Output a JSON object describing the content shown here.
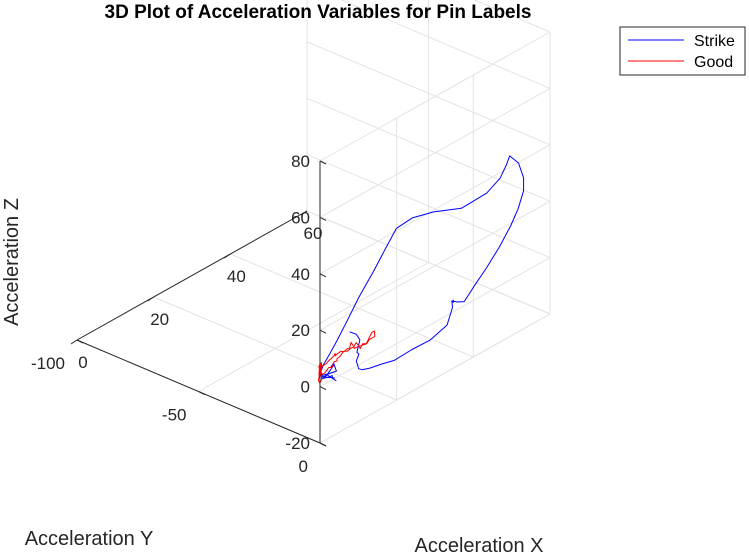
{
  "chart_data": {
    "type": "line",
    "title": "3D Plot of Acceleration Variables for Pin Labels",
    "xlabel": "Acceleration X",
    "ylabel": "Acceleration Y",
    "zlabel": "Acceleration Z",
    "xlim": [
      0,
      60
    ],
    "ylim": [
      -100,
      0
    ],
    "zlim": [
      -20,
      80
    ],
    "x_ticks": [
      "0",
      "20",
      "40",
      "60"
    ],
    "y_ticks": [
      "0",
      "-50",
      "-100"
    ],
    "z_ticks": [
      "-20",
      "0",
      "20",
      "40",
      "60",
      "80"
    ],
    "grid": true,
    "legend_position": "top-right",
    "series": [
      {
        "name": "Strike",
        "color": "#0000ff",
        "points": [
          [
            4.7,
            -0.7,
            -1.8
          ],
          [
            2.3,
            -0.9,
            2.2
          ],
          [
            4.6,
            -0.5,
            1.8
          ],
          [
            4.3,
            -1.2,
            4.6
          ],
          [
            3.2,
            -0.5,
            4.4
          ],
          [
            3.7,
            -0.1,
            4.8
          ],
          [
            2.1,
            0.0,
            3.1
          ],
          [
            2.5,
            -0.8,
            2.2
          ],
          [
            1.9,
            -1.9,
            1.9
          ],
          [
            2.9,
            -1.0,
            2.0
          ],
          [
            2.6,
            -3.5,
            -0.5
          ],
          [
            3.9,
            -2.8,
            -0.7
          ],
          [
            5.4,
            -3.5,
            -1.5
          ],
          [
            6.9,
            -5.7,
            -4.4
          ],
          [
            8.6,
            -7.7,
            -6.3
          ],
          [
            11.3,
            -14.0,
            -10.5
          ],
          [
            14.3,
            -21.7,
            -15.2
          ],
          [
            17.1,
            -26.6,
            -17.3
          ],
          [
            20.1,
            -30.2,
            -18.5
          ],
          [
            23.4,
            -32.9,
            -18.2
          ],
          [
            26.5,
            -34.8,
            -16.6
          ],
          [
            30.3,
            -36.6,
            -13.1
          ],
          [
            34.4,
            -38.3,
            -8.6
          ],
          [
            37.8,
            -37.6,
            -1.7
          ],
          [
            39.5,
            -35.3,
            6.0
          ],
          [
            40.8,
            -32.9,
            13.0
          ],
          [
            42.2,
            -28.6,
            17.2
          ],
          [
            44.2,
            -22.9,
            19.9
          ],
          [
            46.9,
            -15.8,
            21.7
          ],
          [
            50.0,
            -10.3,
            26.7
          ],
          [
            51.3,
            -6.8,
            32.3
          ],
          [
            52.1,
            -5.4,
            37.1
          ],
          [
            51.7,
            -3.5,
            41.1
          ],
          [
            51.2,
            0.9,
            40.6
          ],
          [
            50.4,
            4.3,
            37.2
          ],
          [
            48.8,
            6.8,
            34.7
          ],
          [
            45.6,
            9.6,
            31.8
          ],
          [
            42.5,
            11.4,
            28.7
          ],
          [
            39.7,
            11.3,
            23.5
          ],
          [
            36.8,
            10.6,
            18.1
          ],
          [
            34.1,
            9.5,
            12.9
          ],
          [
            31.9,
            9.0,
            9.1
          ],
          [
            30.9,
            7.8,
            9.3
          ],
          [
            29.4,
            8.7,
            11.0
          ],
          [
            26.9,
            12.3,
            14.7
          ],
          [
            24.9,
            15.6,
            16.6
          ],
          [
            23.5,
            17.1,
            18.7
          ],
          [
            22.9,
            18.2,
            19.2
          ],
          [
            22.7,
            18.7,
            17.6
          ],
          [
            22.0,
            17.6,
            11.5
          ],
          [
            19.6,
            14.4,
            6.8
          ],
          [
            17.4,
            10.4,
            3.7
          ],
          [
            15.8,
            5.6,
            -0.7
          ],
          [
            14.2,
            2.9,
            -1.8
          ],
          [
            12.8,
            0.3,
            -3.1
          ],
          [
            11.6,
            -1.0,
            -3.2
          ],
          [
            10.5,
            -0.7,
            -1.9
          ],
          [
            9.7,
            0.3,
            0.1
          ],
          [
            8.0,
            2.3,
            3.8
          ],
          [
            6.1,
            6.4,
            9.2
          ],
          [
            4.8,
            7.6,
            11.3
          ],
          [
            4.7,
            9.0,
            16.3
          ],
          [
            3.6,
            9.2,
            19.2
          ],
          [
            2.1,
            9.5,
            21.1
          ],
          [
            1.8,
            9.4,
            21.5
          ]
        ]
      },
      {
        "name": "Good",
        "color": "#ff0000",
        "points": [
          [
            0.9,
            -1.2,
            0.4
          ],
          [
            0.8,
            -0.8,
            1.3
          ],
          [
            0.6,
            -0.2,
            2.2
          ],
          [
            0.8,
            -1.1,
            3.7
          ],
          [
            0.6,
            -1.4,
            6.0
          ],
          [
            1.0,
            -1.6,
            6.7
          ],
          [
            0.9,
            -1.4,
            6.7
          ],
          [
            0.6,
            -1.2,
            5.3
          ],
          [
            0.5,
            -1.2,
            3.9
          ],
          [
            0.5,
            -1.3,
            3.6
          ],
          [
            0.8,
            -1.2,
            4.6
          ],
          [
            1.1,
            -1.5,
            5.2
          ],
          [
            1.3,
            -1.7,
            6.4
          ],
          [
            2.0,
            -2.1,
            4.9
          ],
          [
            2.9,
            -2.5,
            4.8
          ],
          [
            3.1,
            -2.4,
            4.8
          ],
          [
            3.6,
            -2.3,
            5.4
          ],
          [
            4.6,
            -2.6,
            5.5
          ],
          [
            5.6,
            -3.1,
            5.5
          ],
          [
            6.0,
            -3.2,
            6.0
          ],
          [
            6.3,
            -3.7,
            4.8
          ],
          [
            6.6,
            -3.7,
            4.9
          ],
          [
            7.8,
            -3.8,
            5.2
          ],
          [
            8.9,
            -4.2,
            4.1
          ],
          [
            10.1,
            -4.6,
            4.1
          ],
          [
            10.6,
            -4.6,
            3.9
          ],
          [
            11.1,
            -4.7,
            5.5
          ],
          [
            12.0,
            -4.7,
            2.7
          ],
          [
            13.4,
            -5.1,
            2.3
          ],
          [
            14.1,
            -5.7,
            0.6
          ],
          [
            14.9,
            -6.0,
            1.6
          ],
          [
            16.1,
            -6.3,
            0.7
          ],
          [
            17.8,
            -6.8,
            3.1
          ],
          [
            18.9,
            -7.4,
            2.6
          ],
          [
            19.3,
            -7.9,
            0.2
          ],
          [
            17.9,
            -8.0,
            0.1
          ],
          [
            17.1,
            -7.8,
            -0.7
          ],
          [
            16.3,
            -8.0,
            -0.6
          ],
          [
            15.0,
            -7.5,
            0.1
          ],
          [
            14.1,
            -7.4,
            2.1
          ],
          [
            13.5,
            -7.5,
            0.9
          ],
          [
            12.6,
            -7.1,
            1.5
          ],
          [
            11.1,
            -6.1,
            1.9
          ],
          [
            10.1,
            -6.2,
            2.6
          ],
          [
            8.6,
            -5.4,
            2.1
          ],
          [
            8.5,
            -6.4,
            1.1
          ],
          [
            8.6,
            -6.6,
            0.1
          ],
          [
            7.7,
            -6.4,
            0.6
          ],
          [
            6.8,
            -5.7,
            -0.4
          ],
          [
            5.1,
            -4.5,
            1.2
          ],
          [
            3.4,
            -3.3,
            1.1
          ],
          [
            2.1,
            -2.4,
            1.9
          ],
          [
            1.5,
            -2.1,
            3.1
          ],
          [
            1.7,
            -2.3,
            3.3
          ],
          [
            2.0,
            -2.5,
            4.2
          ],
          [
            1.9,
            -2.3,
            5.4
          ],
          [
            1.6,
            -2.0,
            6.6
          ],
          [
            1.1,
            -1.6,
            5.2
          ],
          [
            0.8,
            -1.5,
            3.8
          ],
          [
            0.6,
            -1.3,
            2.4
          ],
          [
            0.6,
            -1.6,
            1.2
          ],
          [
            0.5,
            -0.9,
            0.5
          ]
        ]
      }
    ]
  }
}
